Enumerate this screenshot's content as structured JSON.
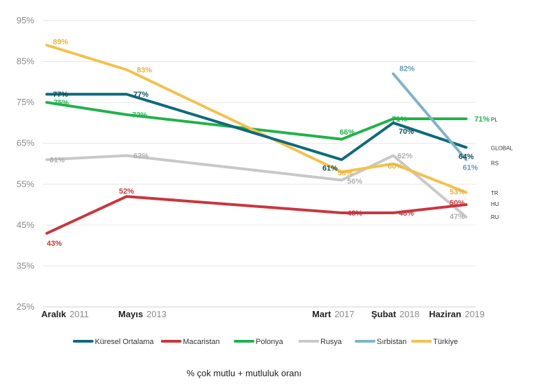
{
  "chart_data": {
    "type": "line",
    "y_ticks": [
      "95%",
      "85%",
      "75%",
      "65%",
      "55%",
      "45%",
      "35%",
      "25%"
    ],
    "ylim": [
      25,
      95
    ],
    "x_axis": [
      {
        "month": "Aralık",
        "year": "2011"
      },
      {
        "month": "Mayıs",
        "year": "2013"
      },
      {
        "month": "Mart",
        "year": "2017"
      },
      {
        "month": "Şubat",
        "year": "2018"
      },
      {
        "month": "Haziran",
        "year": "2019"
      }
    ],
    "series": [
      {
        "name": "Küresel Ortalama",
        "code": "GLOBAL",
        "color": "#0e6a7a",
        "values": [
          77,
          77,
          61,
          70,
          64
        ],
        "labels": [
          "77%",
          "77%",
          "61%",
          "70%",
          "64%"
        ]
      },
      {
        "name": "Macaristan",
        "code": "HU",
        "color": "#c8363d",
        "values": [
          43,
          52,
          48,
          48,
          50
        ],
        "labels": [
          "43%",
          "52%",
          "48%",
          "48%",
          "50%"
        ]
      },
      {
        "name": "Polonya",
        "code": "PL",
        "color": "#22b14c",
        "values": [
          75,
          72,
          66,
          71,
          71
        ],
        "labels": [
          "75%",
          "72%",
          "66%",
          "71%",
          "71%"
        ]
      },
      {
        "name": "Rusya",
        "code": "RU",
        "color": "#c8c8c8",
        "values": [
          61,
          62,
          56,
          62,
          47
        ],
        "labels": [
          "61%",
          "62%",
          "56%",
          "62%",
          "47%"
        ]
      },
      {
        "name": "Sırbistan",
        "code": "RS",
        "color": "#7fb3c8",
        "values": [
          null,
          null,
          null,
          82,
          61
        ],
        "labels": [
          null,
          null,
          null,
          "82%",
          "61%"
        ]
      },
      {
        "name": "Türkiye",
        "code": "TR",
        "color": "#f2c14e",
        "values": [
          89,
          83,
          58,
          60,
          53
        ],
        "labels": [
          "89%",
          "83%",
          "58%",
          "60%",
          "53%"
        ]
      }
    ],
    "xlabel": "",
    "ylabel": "",
    "legend": "bottom",
    "grid": true
  },
  "footnote": "% çok mutlu + mutluluk oranı"
}
